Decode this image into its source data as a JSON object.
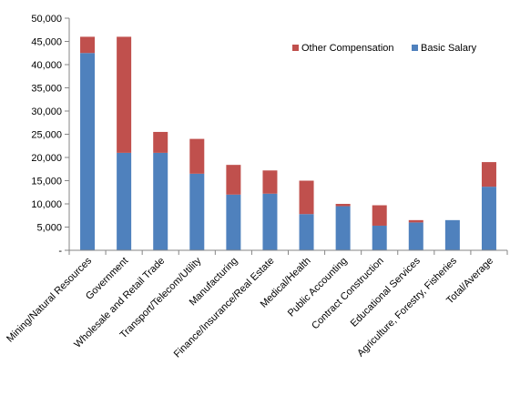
{
  "chart_data": {
    "type": "bar",
    "stacked": true,
    "categories": [
      "Mining/Natural Resources",
      "Government",
      "Wholesale and Retail Trade",
      "Transport/Telecom/Utility",
      "Manufacturing",
      "Finance/Insurance/Real Estate",
      "Medical/Health",
      "Public Accounting",
      "Contract Construction",
      "Educational Services",
      "Agriculture, Forestry, Fisheries",
      "Total/Average"
    ],
    "series": [
      {
        "name": "Basic Salary",
        "color": "#4F81BD",
        "values": [
          42500,
          21000,
          21000,
          16500,
          12000,
          12200,
          7800,
          9500,
          5300,
          6000,
          6500,
          13700
        ]
      },
      {
        "name": "Other Compensation",
        "color": "#C0504D",
        "values": [
          3500,
          25000,
          4500,
          7500,
          6400,
          5000,
          7200,
          500,
          4400,
          500,
          0,
          5300
        ]
      }
    ],
    "ylim": [
      0,
      50000
    ],
    "ytick_step": 5000,
    "ytick_labels": [
      "-",
      "5,000",
      "10,000",
      "15,000",
      "20,000",
      "25,000",
      "30,000",
      "35,000",
      "40,000",
      "45,000",
      "50,000"
    ],
    "grid": false,
    "legend": {
      "position": "top-right",
      "entries": [
        "Other Compensation",
        "Basic Salary"
      ]
    }
  }
}
